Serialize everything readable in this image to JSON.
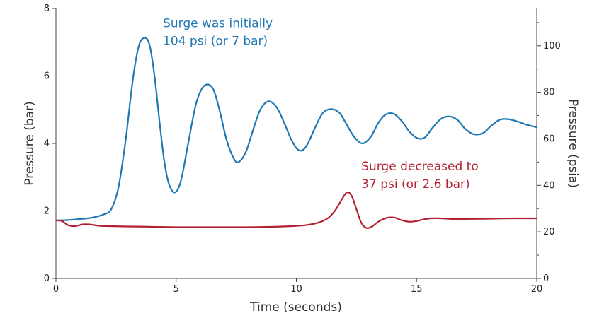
{
  "chart_data": {
    "type": "line",
    "xlabel": "Time (seconds)",
    "ylabel_left": "Pressure (bar)",
    "ylabel_right": "Pressure (psia)",
    "xlim": [
      0,
      20
    ],
    "ylim_left": [
      0,
      8
    ],
    "ylim_right": [
      0,
      116.03
    ],
    "x_ticks": [
      0,
      5,
      10,
      15,
      20
    ],
    "y_ticks_left": [
      0,
      2,
      4,
      6,
      8
    ],
    "y_ticks_right": [
      0,
      20,
      40,
      60,
      80,
      100
    ],
    "grid": false,
    "colors": {
      "series1": "#1f77b4",
      "series2": "#b22234",
      "axis": "#444444"
    },
    "series": [
      {
        "color": "#1f77b4",
        "x": [
          0,
          0.5,
          1.0,
          1.5,
          2.0,
          2.3,
          2.6,
          2.9,
          3.2,
          3.45,
          3.7,
          3.9,
          4.1,
          4.3,
          4.5,
          4.7,
          4.95,
          5.2,
          5.5,
          5.8,
          6.05,
          6.3,
          6.55,
          6.8,
          7.1,
          7.4,
          7.6,
          7.9,
          8.2,
          8.5,
          8.85,
          9.2,
          9.5,
          9.8,
          10.1,
          10.4,
          10.8,
          11.1,
          11.45,
          11.8,
          12.1,
          12.4,
          12.75,
          13.1,
          13.4,
          13.7,
          14.05,
          14.4,
          14.7,
          15.05,
          15.35,
          15.65,
          16.0,
          16.35,
          16.7,
          17.0,
          17.35,
          17.75,
          18.1,
          18.45,
          18.8,
          19.2,
          19.6,
          20.0
        ],
        "y": [
          1.72,
          1.73,
          1.76,
          1.8,
          1.9,
          2.05,
          2.7,
          4.1,
          5.9,
          6.9,
          7.13,
          6.9,
          6.0,
          4.7,
          3.5,
          2.8,
          2.55,
          2.9,
          4.0,
          5.1,
          5.6,
          5.75,
          5.6,
          5.0,
          4.1,
          3.55,
          3.45,
          3.75,
          4.4,
          5.0,
          5.25,
          5.05,
          4.6,
          4.1,
          3.8,
          3.9,
          4.5,
          4.9,
          5.02,
          4.9,
          4.55,
          4.2,
          4.0,
          4.2,
          4.6,
          4.85,
          4.88,
          4.65,
          4.35,
          4.15,
          4.18,
          4.45,
          4.72,
          4.8,
          4.7,
          4.45,
          4.28,
          4.3,
          4.52,
          4.7,
          4.72,
          4.65,
          4.55,
          4.48
        ]
      },
      {
        "color": "#b22234",
        "x": [
          0,
          0.25,
          0.5,
          0.8,
          1.1,
          1.4,
          1.8,
          2.2,
          3.0,
          4.0,
          5.0,
          6.0,
          7.0,
          8.0,
          9.0,
          9.8,
          10.4,
          10.9,
          11.3,
          11.6,
          11.9,
          12.1,
          12.3,
          12.5,
          12.7,
          12.9,
          13.1,
          13.3,
          13.5,
          13.8,
          14.1,
          14.4,
          14.7,
          15.0,
          15.3,
          15.6,
          16.0,
          16.5,
          17.0,
          18.0,
          19.0,
          20.0
        ],
        "y": [
          1.72,
          1.7,
          1.58,
          1.55,
          1.6,
          1.6,
          1.56,
          1.55,
          1.54,
          1.53,
          1.52,
          1.52,
          1.52,
          1.52,
          1.53,
          1.55,
          1.58,
          1.65,
          1.78,
          2.0,
          2.35,
          2.55,
          2.45,
          2.05,
          1.65,
          1.5,
          1.52,
          1.62,
          1.72,
          1.8,
          1.8,
          1.72,
          1.68,
          1.7,
          1.75,
          1.78,
          1.78,
          1.76,
          1.76,
          1.77,
          1.78,
          1.78
        ]
      }
    ],
    "annotations": [
      {
        "lines": [
          "Surge was initially",
          "104 psi (or 7 bar)"
        ],
        "color": "#1f77b4",
        "anchor_x": 4.45,
        "anchor_y": 7.45
      },
      {
        "lines": [
          "Surge decreased to",
          "37 psi (or 2.6 bar)"
        ],
        "color": "#b22234",
        "anchor_x": 12.7,
        "anchor_y": 3.2
      }
    ]
  }
}
